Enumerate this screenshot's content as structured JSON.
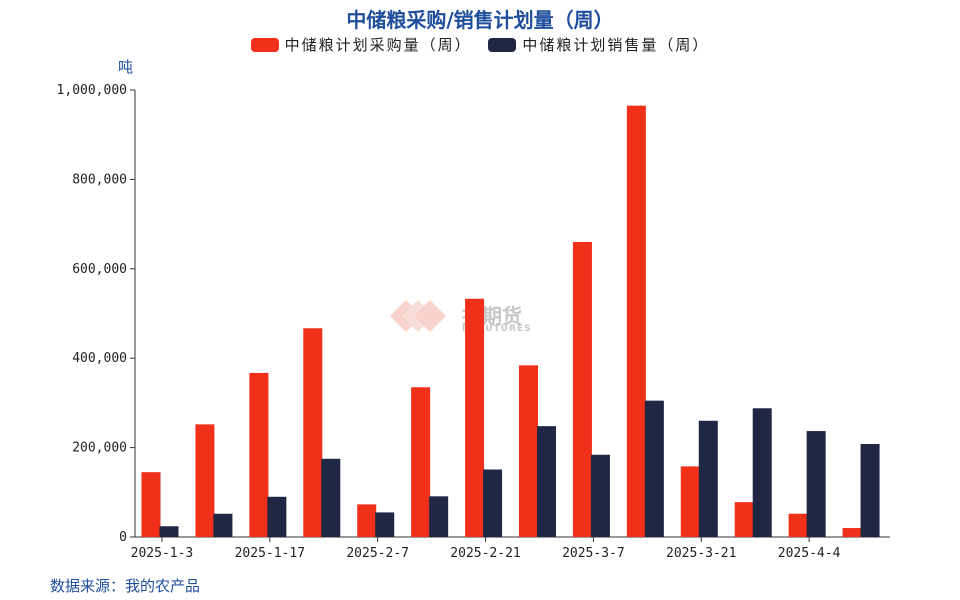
{
  "chart_data": {
    "type": "bar",
    "title": "中储粮采购/销售计划量（周）",
    "ylabel": "吨",
    "ylim": [
      0,
      1000000
    ],
    "yticks": [
      "0",
      "200,000",
      "400,000",
      "600,000",
      "800,000",
      "1,000,000"
    ],
    "ytick_values": [
      0,
      200000,
      400000,
      600000,
      800000,
      1000000
    ],
    "xtick_labels": [
      "2025-1-3",
      "2025-1-17",
      "2025-2-7",
      "2025-2-21",
      "2025-3-7",
      "2025-3-21",
      "2025-4-4"
    ],
    "series": [
      {
        "name": "中储粮计划采购量（周）",
        "color": "#f03018",
        "values": [
          145000,
          252000,
          367000,
          467000,
          73000,
          335000,
          533000,
          384000,
          660000,
          965000,
          158000,
          78000,
          52000,
          20000
        ]
      },
      {
        "name": "中储粮计划销售量（周）",
        "color": "#1f2745",
        "values": [
          24000,
          52000,
          90000,
          175000,
          55000,
          91000,
          151000,
          248000,
          184000,
          305000,
          260000,
          288000,
          237000,
          208000
        ]
      }
    ],
    "legend_position": "top",
    "grid": false
  },
  "source": "数据来源：我的农产品",
  "watermark": {
    "text": "投期货",
    "sub": "IC FUTURES"
  }
}
